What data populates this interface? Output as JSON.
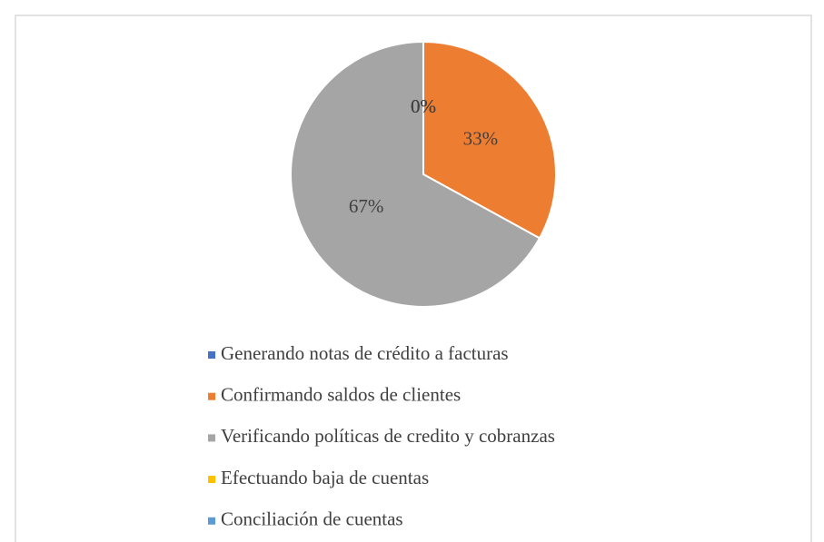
{
  "chart_data": {
    "type": "pie",
    "categories": [
      "Generando notas de crédito a facturas",
      "Confirmando saldos de clientes",
      "Verificando políticas de credito y cobranzas",
      "Efectuando baja de cuentas",
      "Conciliación de cuentas"
    ],
    "values": [
      0,
      33,
      67,
      0,
      0
    ],
    "value_labels": [
      "0%",
      "33%",
      "67%",
      "0%",
      "0%"
    ],
    "colors": [
      "#4472c4",
      "#ed7d31",
      "#a5a5a5",
      "#ffc000",
      "#5b9bd5"
    ],
    "legend": "bottom"
  }
}
